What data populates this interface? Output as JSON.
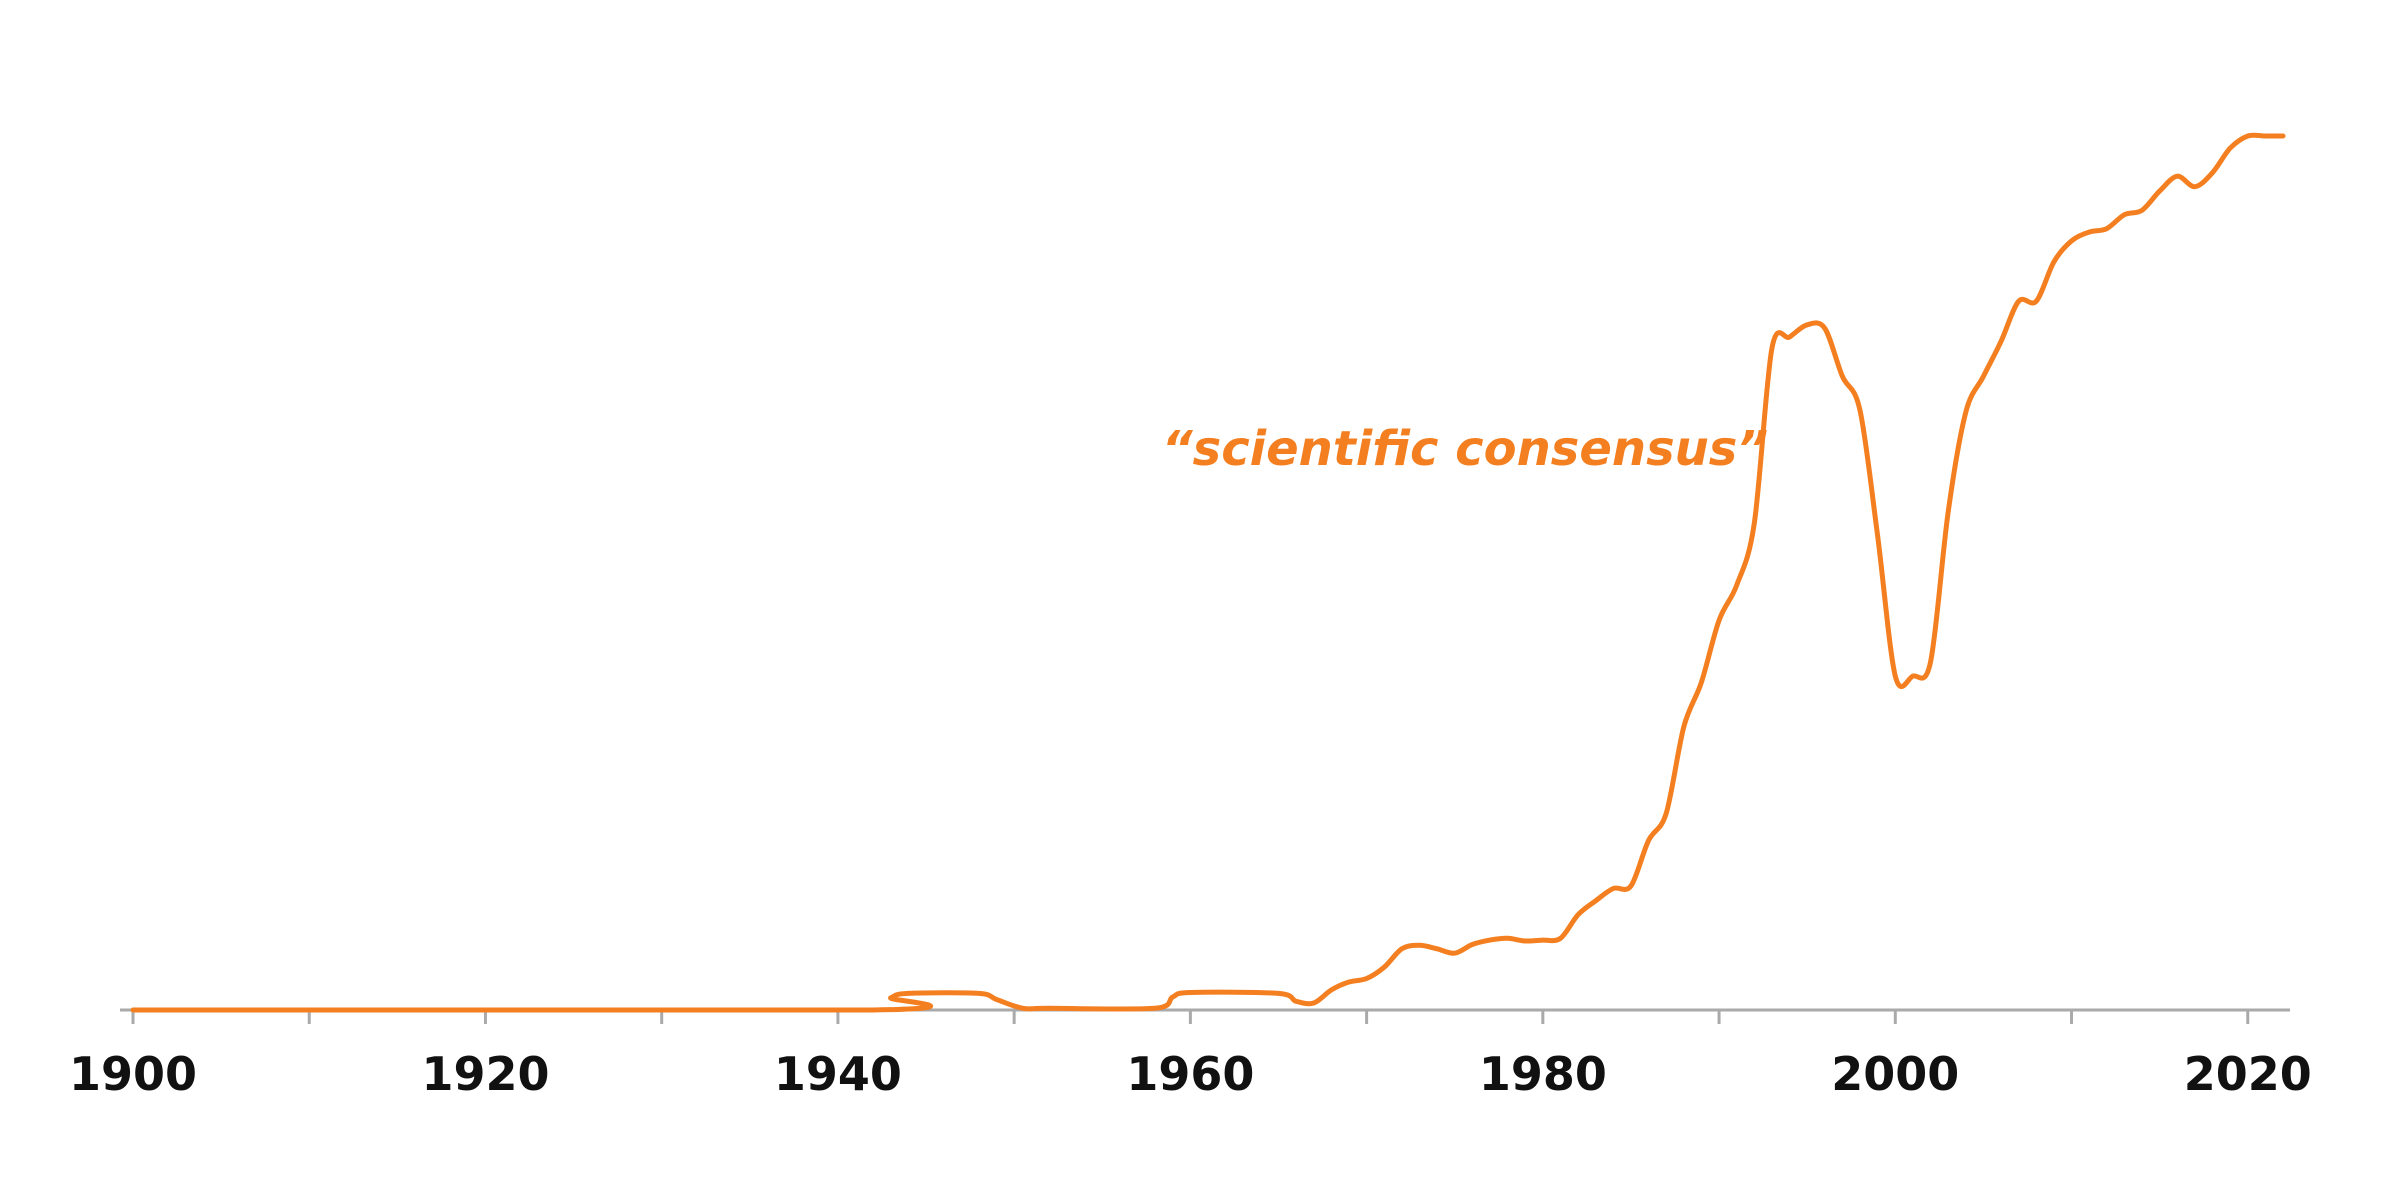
{
  "chart_data": {
    "type": "line",
    "title": "",
    "xlabel": "",
    "ylabel": "",
    "xlim": [
      1900,
      2022
    ],
    "ylim": [
      0,
      100
    ],
    "xticks_major": [
      1900,
      1920,
      1940,
      1960,
      1980,
      2000,
      2020
    ],
    "xticks_major_labels": [
      "1900",
      "1920",
      "1940",
      "1960",
      "1980",
      "2000",
      "2020"
    ],
    "xticks_minor": [
      1910,
      1930,
      1950,
      1970,
      1990,
      2010
    ],
    "grid": false,
    "legend": "none",
    "colors": {
      "series": "#f47f20",
      "axis": "#aaaaaa",
      "text": "#111111"
    },
    "series": [
      {
        "name": "“scientific consensus”",
        "x": [
          1900,
          1942,
          1943,
          1944,
          1948,
          1949,
          1950.5,
          1952,
          1958,
          1959,
          1960,
          1965,
          1966,
          1967,
          1968,
          1969,
          1970,
          1971,
          1972,
          1973,
          1974,
          1975,
          1976,
          1977,
          1978,
          1979,
          1980,
          1981,
          1982,
          1983,
          1984,
          1985,
          1986,
          1987,
          1988,
          1989,
          1990,
          1991,
          1992,
          1993,
          1994,
          1995,
          1996,
          1997,
          1998,
          1999,
          2000,
          2001,
          2002,
          2003,
          2004,
          2005,
          2006,
          2007,
          2008,
          2009,
          2010,
          2011,
          2012,
          2013,
          2014,
          2015,
          2016,
          2017,
          2018,
          2019,
          2020,
          2021,
          2022
        ],
        "y": [
          0,
          0,
          1.4,
          1.9,
          1.9,
          1.2,
          0.2,
          0.2,
          0.2,
          1.5,
          2.0,
          1.9,
          1.0,
          0.8,
          2.3,
          3.2,
          3.6,
          4.9,
          7.0,
          7.4,
          7.0,
          6.5,
          7.5,
          8.0,
          8.2,
          7.9,
          8.0,
          8.2,
          10.9,
          12.5,
          13.9,
          14.2,
          19.4,
          22.5,
          32.4,
          37.5,
          44.6,
          48.6,
          55.7,
          75.7,
          77.0,
          78.4,
          78.0,
          72.5,
          68.6,
          54.2,
          38.2,
          38.2,
          39.8,
          57.0,
          68.4,
          72.5,
          76.5,
          81.1,
          81.1,
          85.6,
          88.0,
          89.0,
          89.4,
          91.0,
          91.5,
          93.7,
          95.4,
          94.2,
          95.8,
          98.6,
          100.0,
          100.0,
          100.0
        ]
      }
    ]
  }
}
